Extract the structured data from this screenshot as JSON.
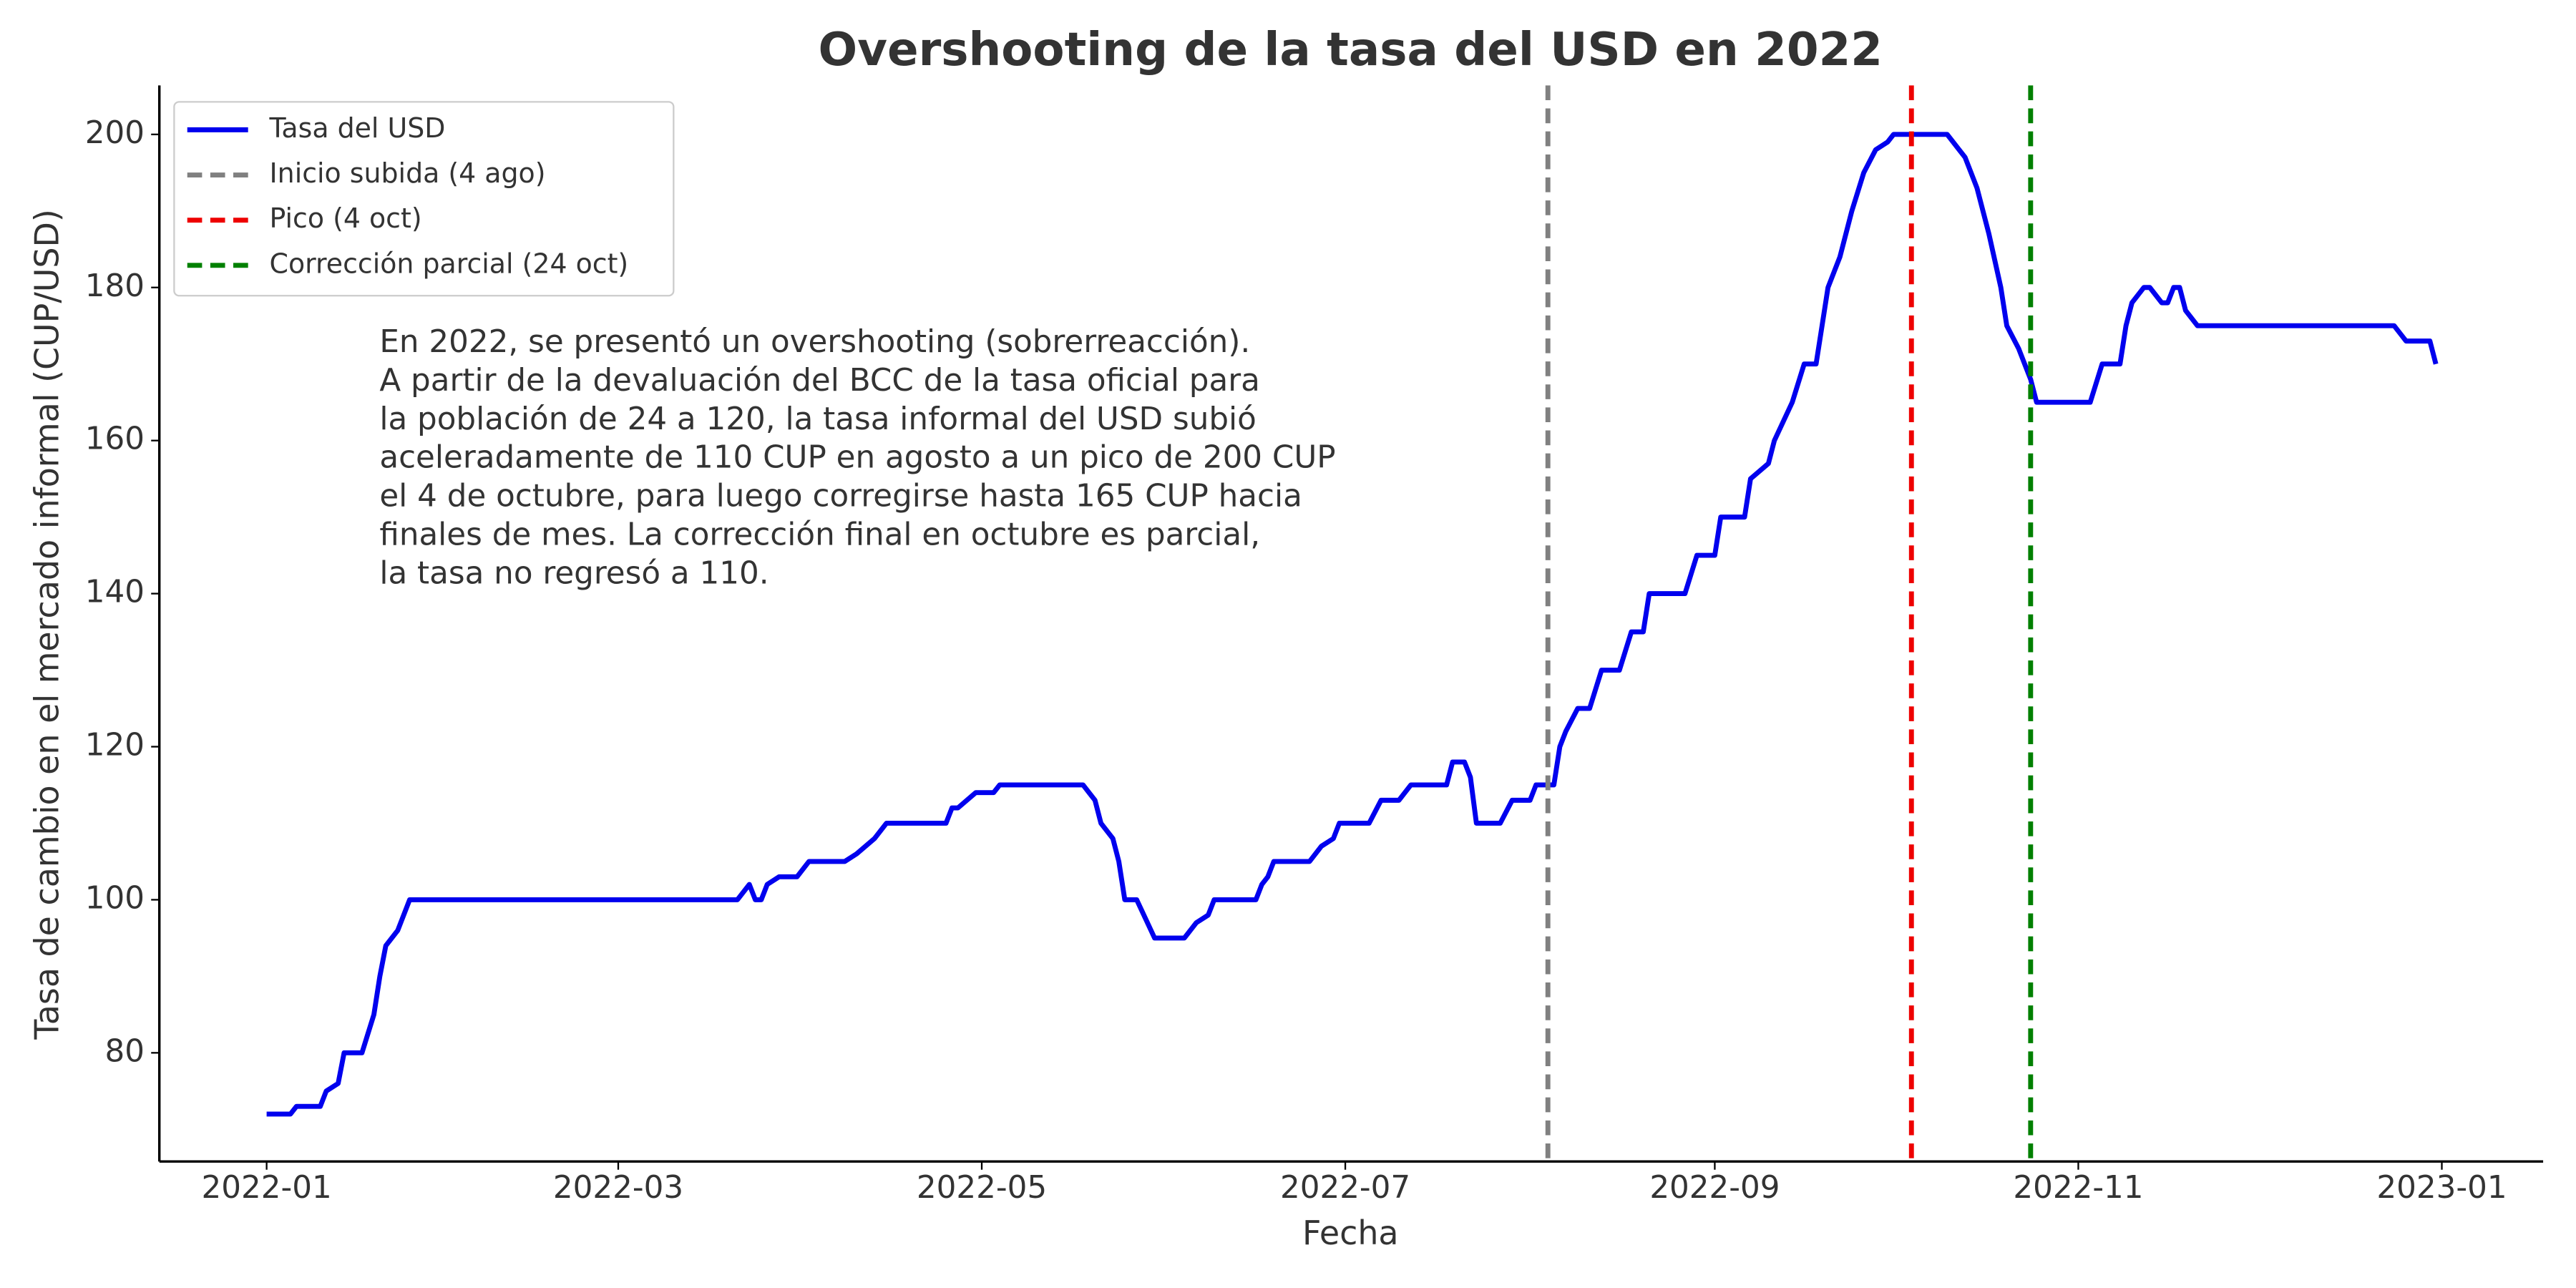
{
  "chart_data": {
    "type": "line",
    "title": "Overshooting de la tasa del USD en 2022",
    "xlabel": "Fecha",
    "ylabel": "Tasa de cambio en el mercado informal (CUP/USD)",
    "x": [
      "2022-01-01",
      "2022-01-05",
      "2022-01-06",
      "2022-01-10",
      "2022-01-11",
      "2022-01-13",
      "2022-01-14",
      "2022-01-17",
      "2022-01-19",
      "2022-01-20",
      "2022-01-21",
      "2022-01-23",
      "2022-01-25",
      "2022-03-21",
      "2022-03-23",
      "2022-03-24",
      "2022-03-25",
      "2022-03-26",
      "2022-03-28",
      "2022-03-31",
      "2022-04-02",
      "2022-04-08",
      "2022-04-10",
      "2022-04-13",
      "2022-04-15",
      "2022-04-25",
      "2022-04-26",
      "2022-04-27",
      "2022-04-30",
      "2022-05-03",
      "2022-05-04",
      "2022-05-18",
      "2022-05-20",
      "2022-05-21",
      "2022-05-23",
      "2022-05-24",
      "2022-05-25",
      "2022-05-27",
      "2022-05-30",
      "2022-06-04",
      "2022-06-06",
      "2022-06-08",
      "2022-06-09",
      "2022-06-16",
      "2022-06-17",
      "2022-06-18",
      "2022-06-19",
      "2022-06-25",
      "2022-06-27",
      "2022-06-29",
      "2022-06-30",
      "2022-07-05",
      "2022-07-07",
      "2022-07-10",
      "2022-07-12",
      "2022-07-18",
      "2022-07-19",
      "2022-07-21",
      "2022-07-22",
      "2022-07-23",
      "2022-07-27",
      "2022-07-29",
      "2022-08-01",
      "2022-08-02",
      "2022-08-05",
      "2022-08-06",
      "2022-08-07",
      "2022-08-09",
      "2022-08-11",
      "2022-08-13",
      "2022-08-16",
      "2022-08-18",
      "2022-08-20",
      "2022-08-21",
      "2022-08-27",
      "2022-08-29",
      "2022-09-01",
      "2022-09-02",
      "2022-09-06",
      "2022-09-07",
      "2022-09-10",
      "2022-09-11",
      "2022-09-14",
      "2022-09-16",
      "2022-09-18",
      "2022-09-19",
      "2022-09-20",
      "2022-09-22",
      "2022-09-24",
      "2022-09-26",
      "2022-09-28",
      "2022-09-30",
      "2022-10-01",
      "2022-10-04",
      "2022-10-10",
      "2022-10-12",
      "2022-10-13",
      "2022-10-15",
      "2022-10-17",
      "2022-10-19",
      "2022-10-20",
      "2022-10-22",
      "2022-10-23",
      "2022-10-24",
      "2022-10-25",
      "2022-11-03",
      "2022-11-05",
      "2022-11-08",
      "2022-11-09",
      "2022-11-10",
      "2022-11-12",
      "2022-11-13",
      "2022-11-15",
      "2022-11-16",
      "2022-11-17",
      "2022-11-18",
      "2022-11-19",
      "2022-11-21",
      "2022-12-24",
      "2022-12-25",
      "2022-12-26",
      "2022-12-30",
      "2022-12-31"
    ],
    "series": [
      {
        "name": "Tasa del USD",
        "color": "#0000ee",
        "values": [
          72,
          72,
          73,
          73,
          75,
          76,
          80,
          80,
          85,
          90,
          94,
          96,
          100,
          100,
          102,
          100,
          100,
          102,
          103,
          103,
          105,
          105,
          106,
          108,
          110,
          110,
          112,
          112,
          114,
          114,
          115,
          115,
          113,
          110,
          108,
          105,
          100,
          100,
          95,
          95,
          97,
          98,
          100,
          100,
          102,
          103,
          105,
          105,
          107,
          108,
          110,
          110,
          113,
          113,
          115,
          115,
          118,
          118,
          116,
          110,
          110,
          113,
          113,
          115,
          115,
          120,
          122,
          125,
          125,
          130,
          130,
          135,
          135,
          140,
          140,
          145,
          145,
          150,
          150,
          155,
          157,
          160,
          165,
          170,
          170,
          175,
          180,
          184,
          190,
          195,
          198,
          199,
          200,
          200,
          200,
          198,
          197,
          193,
          187,
          180,
          175,
          172,
          170,
          168,
          165,
          165,
          170,
          170,
          175,
          178,
          180,
          180,
          178,
          178,
          180,
          180,
          177,
          175,
          175,
          174,
          173,
          173,
          170
        ]
      }
    ],
    "vlines": [
      {
        "name": "Inicio subida (4 ago)",
        "x": "2022-08-04",
        "color": "#808080"
      },
      {
        "name": "Pico (4 oct)",
        "x": "2022-10-04",
        "color": "#ee0000"
      },
      {
        "name": "Corrección parcial (24 oct)",
        "x": "2022-10-24",
        "color": "#008000"
      }
    ],
    "annotation": [
      "En 2022, se presentó un overshooting (sobrerreacción).",
      "A partir de la devaluación del BCC de la tasa oficial para",
      "la población de 24 a 120, la tasa informal del USD subió",
      "aceleradamente de 110 CUP en agosto a un pico de 200 CUP",
      "el 4 de octubre, para luego corregirse hasta 165 CUP hacia",
      "finales de mes. La corrección final en octubre es parcial,",
      "la tasa no regresó a 110."
    ],
    "xlim": [
      "2021-12-14",
      "2023-01-18"
    ],
    "xticks": [
      {
        "value": "2022-01-01",
        "label": "2022-01"
      },
      {
        "value": "2022-03-01",
        "label": "2022-03"
      },
      {
        "value": "2022-05-01",
        "label": "2022-05"
      },
      {
        "value": "2022-07-01",
        "label": "2022-07"
      },
      {
        "value": "2022-09-01",
        "label": "2022-09"
      },
      {
        "value": "2022-11-01",
        "label": "2022-11"
      },
      {
        "value": "2023-01-01",
        "label": "2023-01"
      }
    ],
    "ylim": [
      65.8,
      206.4
    ],
    "yticks": [
      80,
      100,
      120,
      140,
      160,
      180,
      200
    ],
    "grid": false,
    "legend": "upper left"
  }
}
